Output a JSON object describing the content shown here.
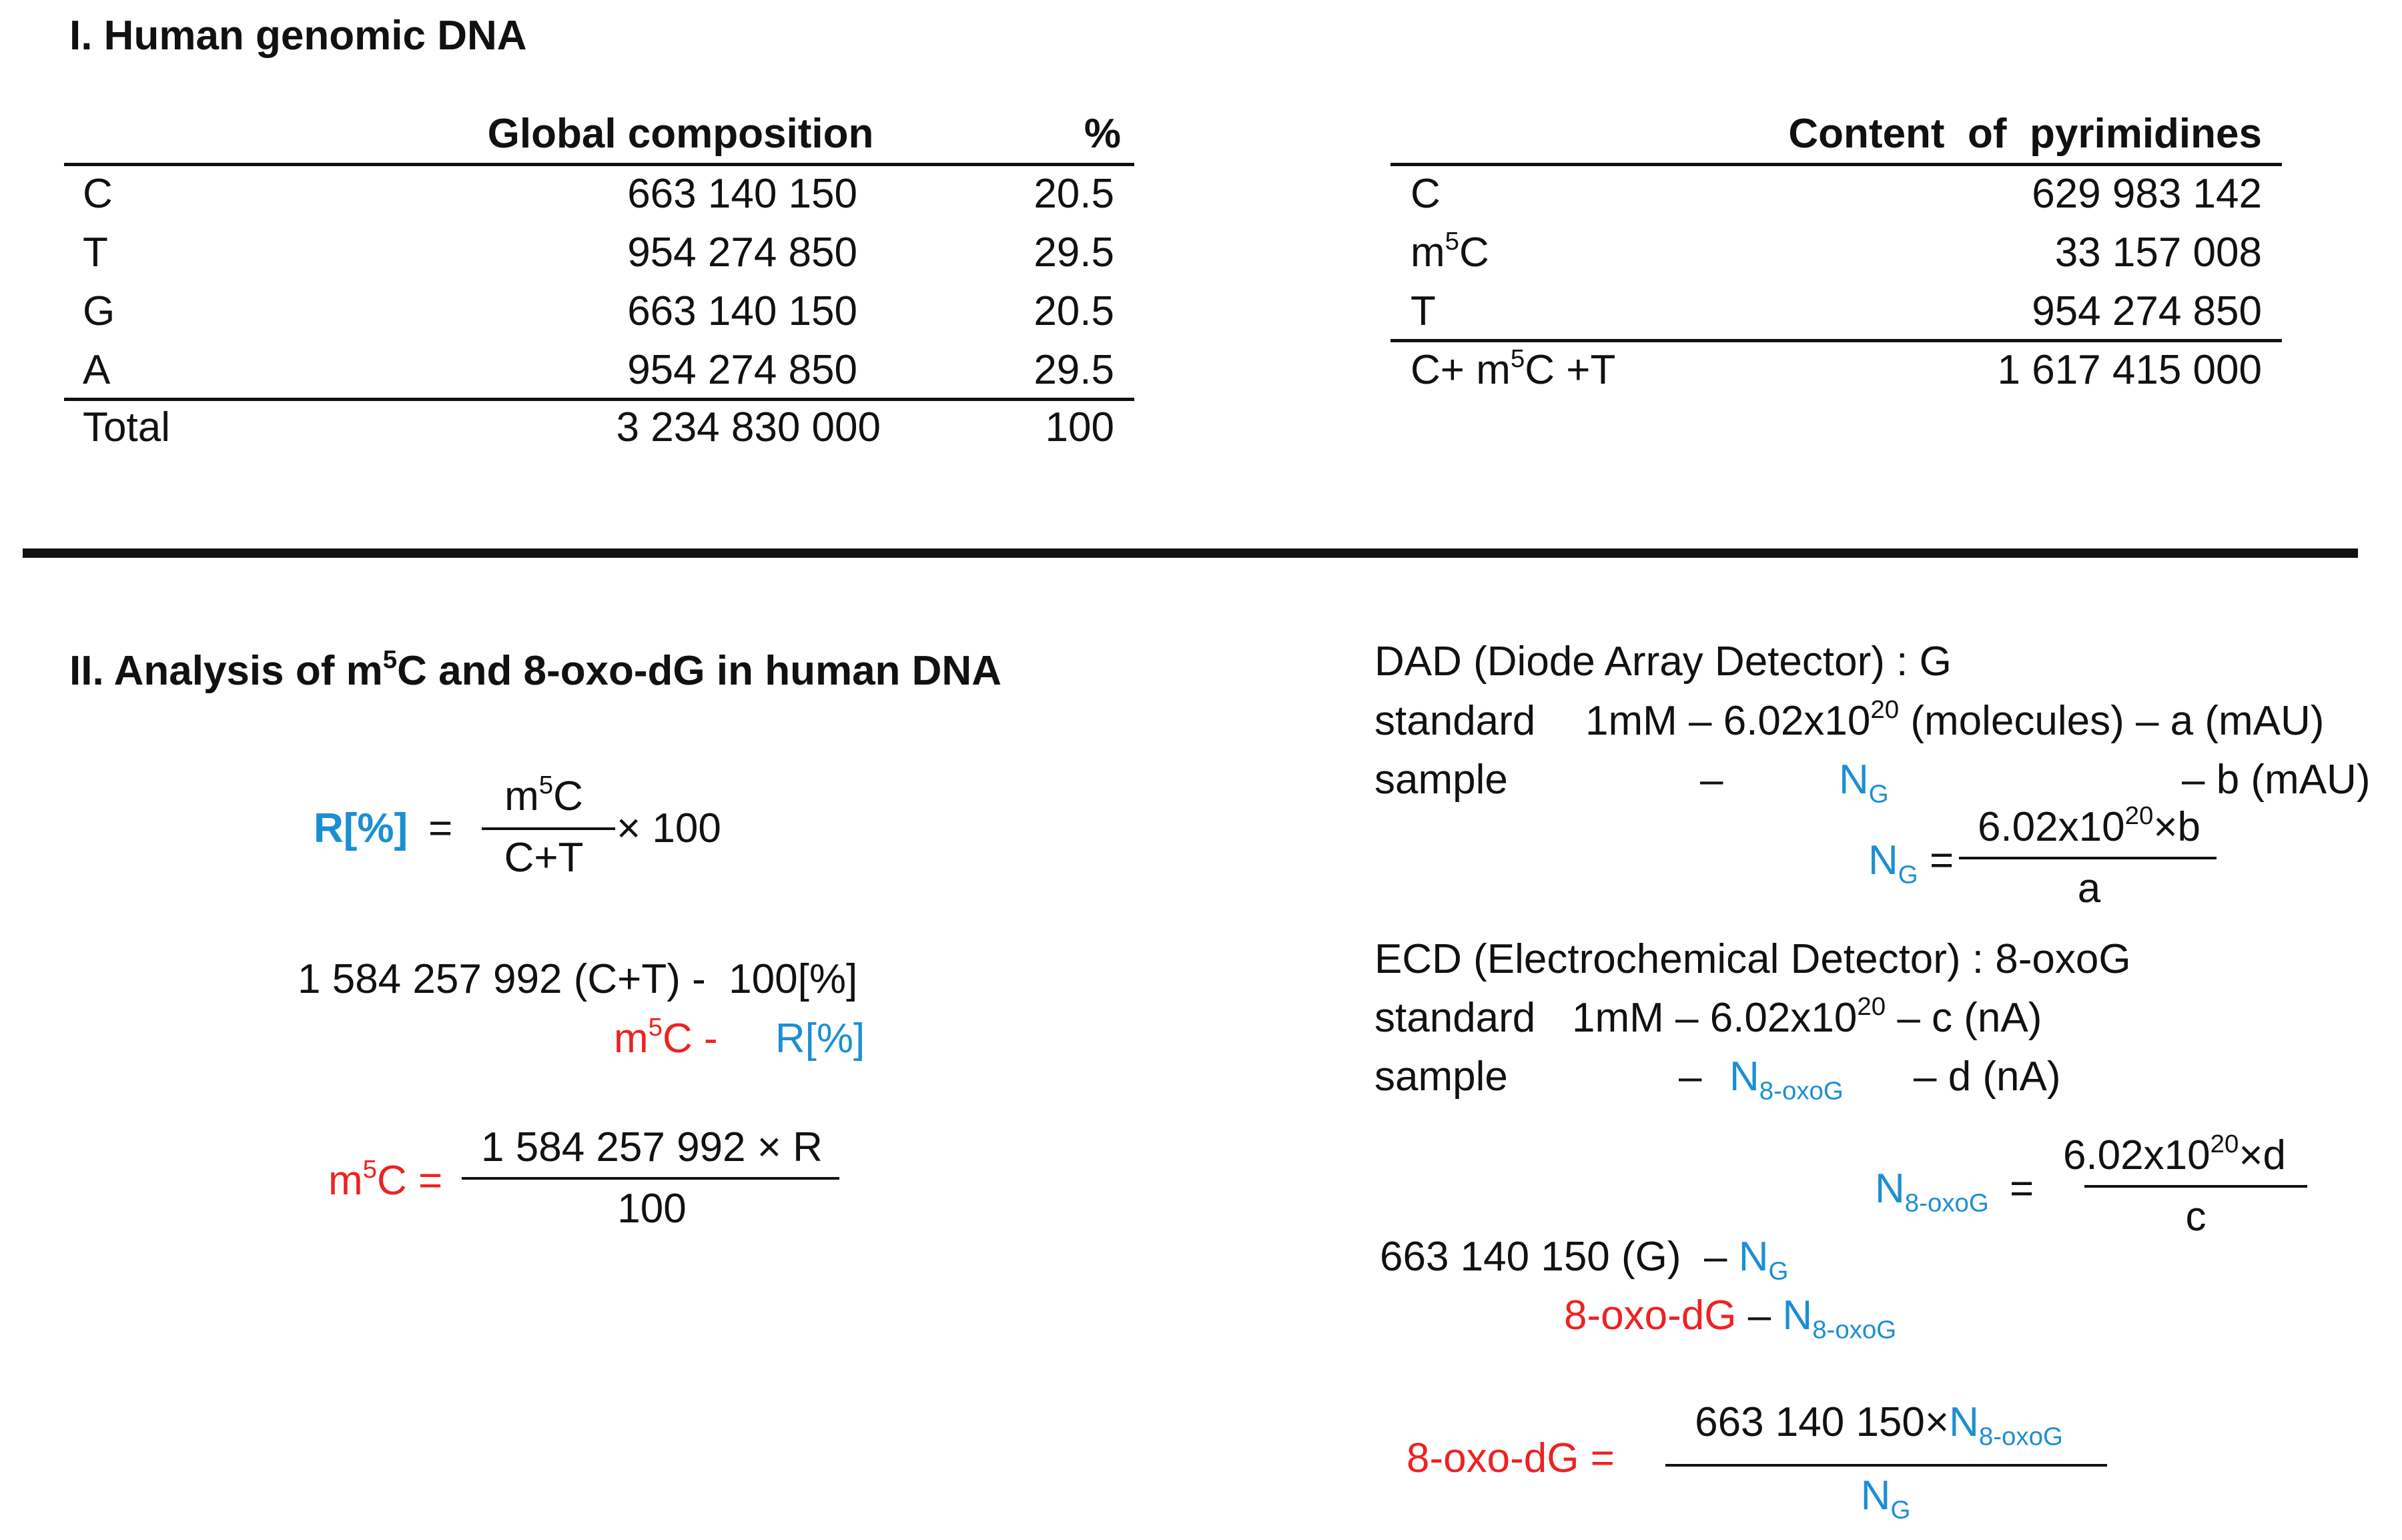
{
  "section1": {
    "title": "I. Human genomic DNA",
    "table1": {
      "headers": [
        "",
        "Global composition",
        "%"
      ],
      "rows": [
        {
          "label": "C",
          "count": "663 140 150",
          "pct": "20.5"
        },
        {
          "label": "T",
          "count": "954 274 850",
          "pct": "29.5"
        },
        {
          "label": "G",
          "count": "663 140 150",
          "pct": "20.5"
        },
        {
          "label": "A",
          "count": "954 274 850",
          "pct": "29.5"
        }
      ],
      "total": {
        "label": "Total",
        "count": "3 234 830 000",
        "pct": "100"
      }
    },
    "table2": {
      "header": "Content  of  pyrimidines",
      "rows": [
        {
          "label": "C",
          "value": "629 983 142"
        },
        {
          "label_base": "m",
          "label_sup": "5",
          "label_rest": "C",
          "value": "33 157 008"
        },
        {
          "label": "T",
          "value": "954 274 850"
        }
      ],
      "total": {
        "label_pre": "C+ m",
        "label_sup": "5",
        "label_post": "C +T",
        "value": "1 617 415 000"
      }
    }
  },
  "section2": {
    "title_pre": "II. Analysis of m",
    "title_sup": "5",
    "title_post": "C and 8-oxo-dG in human DNA",
    "formula_r": {
      "lhs": "R[%]",
      "eq": "=",
      "num_base": "m",
      "num_sup": "5",
      "num_rest": "C",
      "den": "C+T",
      "times": "× 100"
    },
    "proportion": {
      "line1": "1 584 257 992 (C+T) -  100[%]",
      "line2_base": "m",
      "line2_sup": "5",
      "line2_rest": "C -",
      "line2_r": "R[%]"
    },
    "formula_m5c": {
      "lhs_base": "m",
      "lhs_sup": "5",
      "lhs_rest": "C =",
      "num": "1 584 257 992 × R",
      "den": "100"
    },
    "dad": {
      "title": "DAD (Diode Array Detector) : G",
      "std_label": "standard",
      "std_text": "1mM – 6.02x10",
      "std_sup": "20",
      "std_rest": " (molecules) – a (mAU)",
      "sample_label": "sample",
      "sample_dash": "–",
      "n_base": "N",
      "n_sub": "G",
      "sample_end": "– b (mAU)",
      "frac_lhs_base": "N",
      "frac_lhs_sub": "G",
      "frac_eq": "=",
      "frac_num_base": "6.02x10",
      "frac_num_sup": "20",
      "frac_num_rest": "×b",
      "frac_den": "a"
    },
    "ecd": {
      "title": "ECD (Electrochemical Detector) : 8-oxoG",
      "std_label": "standard",
      "std_text": "1mM – 6.02x10",
      "std_sup": "20",
      "std_rest": " – c (nA)",
      "sample_label": "sample",
      "sample_dash": "–",
      "n_base": "N",
      "n_sub": "8-oxoG",
      "sample_end": "– d (nA)",
      "frac_lhs_base": "N",
      "frac_lhs_sub": "8-oxoG",
      "frac_eq": "=",
      "frac_num_base": "6.02x10",
      "frac_num_sup": "20",
      "frac_num_rest": "×d",
      "frac_den": "c"
    },
    "g_prop": {
      "line1": "663 140 150 (G)  –",
      "line1_n": "N",
      "line1_sub": "G",
      "line2_red": "8-oxo-dG",
      "line2_dash": "–",
      "line2_n": "N",
      "line2_sub": "8-oxoG"
    },
    "formula_oxo": {
      "lhs": "8-oxo-dG =",
      "num_text": "663 140 150×",
      "num_n": "N",
      "num_sub": "8-oxoG",
      "den_n": "N",
      "den_sub": "G"
    }
  }
}
